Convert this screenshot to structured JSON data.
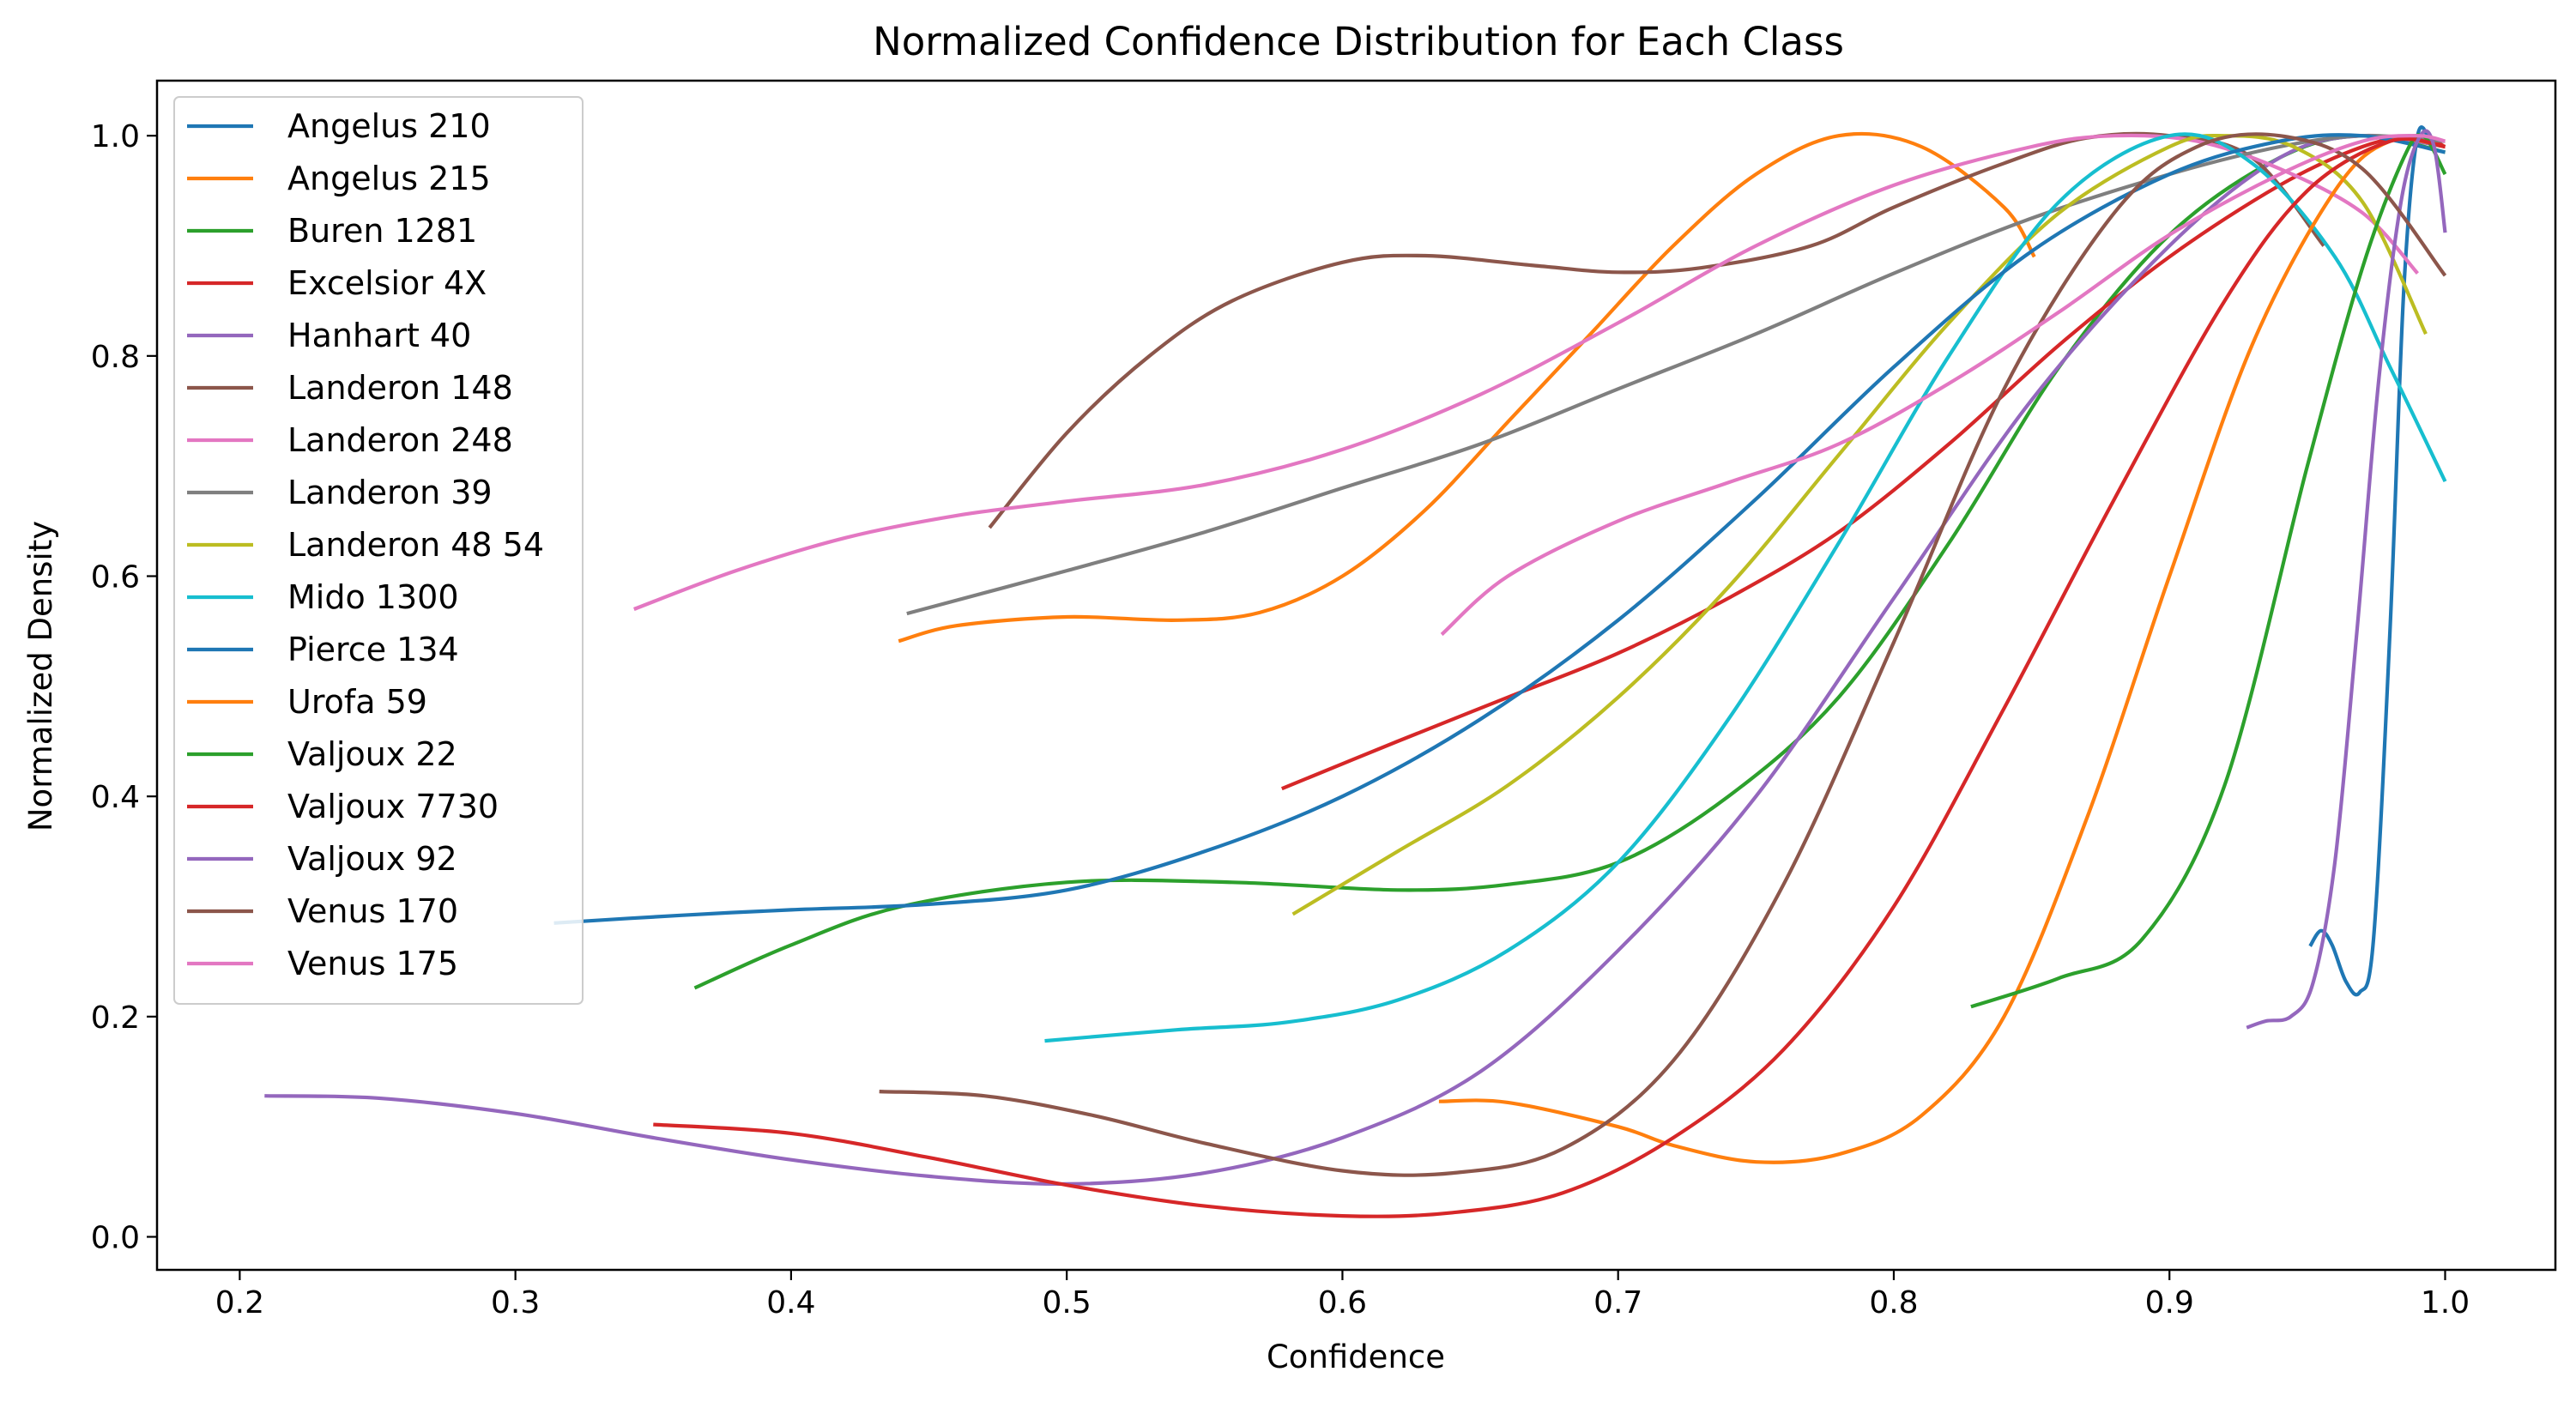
{
  "chart_data": {
    "type": "line",
    "title": "Normalized Confidence Distribution for Each Class",
    "xlabel": "Confidence",
    "ylabel": "Normalized Density",
    "xlim": [
      0.17,
      1.04
    ],
    "ylim": [
      -0.03,
      1.05
    ],
    "xticks": [
      "0.2",
      "0.3",
      "0.4",
      "0.5",
      "0.6",
      "0.7",
      "0.8",
      "0.9",
      "1.0"
    ],
    "yticks": [
      "0.0",
      "0.2",
      "0.4",
      "0.6",
      "0.8",
      "1.0"
    ],
    "grid": false,
    "legend_position": "upper-left",
    "series": [
      {
        "name": "Angelus 210",
        "color": "#1f77b4",
        "points": [
          [
            0.951,
            0.264
          ],
          [
            0.955,
            0.278
          ],
          [
            0.959,
            0.265
          ],
          [
            0.964,
            0.232
          ],
          [
            0.969,
            0.222
          ],
          [
            0.974,
            0.27
          ],
          [
            0.98,
            0.55
          ],
          [
            0.985,
            0.86
          ],
          [
            0.99,
            1.0
          ],
          [
            0.995,
            0.99
          ]
        ]
      },
      {
        "name": "Angelus 215",
        "color": "#ff7f0e",
        "points": [
          [
            0.439,
            0.541
          ],
          [
            0.46,
            0.555
          ],
          [
            0.5,
            0.563
          ],
          [
            0.54,
            0.56
          ],
          [
            0.57,
            0.567
          ],
          [
            0.6,
            0.6
          ],
          [
            0.63,
            0.66
          ],
          [
            0.66,
            0.74
          ],
          [
            0.69,
            0.82
          ],
          [
            0.72,
            0.9
          ],
          [
            0.75,
            0.965
          ],
          [
            0.78,
            1.0
          ],
          [
            0.81,
            0.99
          ],
          [
            0.84,
            0.935
          ],
          [
            0.851,
            0.89
          ]
        ]
      },
      {
        "name": "Buren 1281",
        "color": "#2ca02c",
        "points": [
          [
            0.365,
            0.226
          ],
          [
            0.4,
            0.265
          ],
          [
            0.44,
            0.3
          ],
          [
            0.5,
            0.322
          ],
          [
            0.56,
            0.322
          ],
          [
            0.62,
            0.315
          ],
          [
            0.66,
            0.32
          ],
          [
            0.7,
            0.34
          ],
          [
            0.74,
            0.4
          ],
          [
            0.78,
            0.49
          ],
          [
            0.82,
            0.63
          ],
          [
            0.86,
            0.79
          ],
          [
            0.9,
            0.91
          ],
          [
            0.94,
            0.98
          ],
          [
            0.97,
            1.0
          ],
          [
            1.0,
            0.985
          ]
        ]
      },
      {
        "name": "Excelsior 4X",
        "color": "#d62728",
        "points": [
          [
            0.578,
            0.407
          ],
          [
            0.62,
            0.45
          ],
          [
            0.66,
            0.49
          ],
          [
            0.7,
            0.53
          ],
          [
            0.74,
            0.58
          ],
          [
            0.78,
            0.64
          ],
          [
            0.82,
            0.72
          ],
          [
            0.86,
            0.81
          ],
          [
            0.9,
            0.89
          ],
          [
            0.94,
            0.955
          ],
          [
            0.97,
            0.99
          ],
          [
            0.99,
            1.0
          ],
          [
            1.0,
            0.99
          ]
        ]
      },
      {
        "name": "Hanhart 40",
        "color": "#9467bd",
        "points": [
          [
            0.209,
            0.128
          ],
          [
            0.25,
            0.126
          ],
          [
            0.3,
            0.112
          ],
          [
            0.35,
            0.09
          ],
          [
            0.4,
            0.07
          ],
          [
            0.45,
            0.055
          ],
          [
            0.5,
            0.048
          ],
          [
            0.55,
            0.058
          ],
          [
            0.6,
            0.09
          ],
          [
            0.65,
            0.15
          ],
          [
            0.7,
            0.26
          ],
          [
            0.75,
            0.4
          ],
          [
            0.8,
            0.58
          ],
          [
            0.85,
            0.76
          ],
          [
            0.9,
            0.9
          ],
          [
            0.94,
            0.98
          ],
          [
            0.97,
            1.0
          ],
          [
            1.0,
            0.99
          ]
        ]
      },
      {
        "name": "Landeron 148",
        "color": "#8c564b",
        "points": [
          [
            0.472,
            0.644
          ],
          [
            0.5,
            0.73
          ],
          [
            0.53,
            0.8
          ],
          [
            0.56,
            0.85
          ],
          [
            0.6,
            0.885
          ],
          [
            0.63,
            0.891
          ],
          [
            0.67,
            0.882
          ],
          [
            0.7,
            0.876
          ],
          [
            0.73,
            0.88
          ],
          [
            0.77,
            0.9
          ],
          [
            0.8,
            0.935
          ],
          [
            0.84,
            0.975
          ],
          [
            0.87,
            0.998
          ],
          [
            0.9,
            1.0
          ],
          [
            0.93,
            0.98
          ],
          [
            0.956,
            0.9
          ]
        ]
      },
      {
        "name": "Landeron 248",
        "color": "#e377c2",
        "points": [
          [
            0.343,
            0.57
          ],
          [
            0.38,
            0.605
          ],
          [
            0.42,
            0.635
          ],
          [
            0.46,
            0.655
          ],
          [
            0.5,
            0.668
          ],
          [
            0.55,
            0.683
          ],
          [
            0.6,
            0.715
          ],
          [
            0.65,
            0.765
          ],
          [
            0.7,
            0.83
          ],
          [
            0.75,
            0.9
          ],
          [
            0.8,
            0.955
          ],
          [
            0.85,
            0.99
          ],
          [
            0.88,
            1.0
          ],
          [
            0.91,
            0.995
          ],
          [
            0.94,
            0.97
          ],
          [
            0.97,
            0.93
          ],
          [
            0.99,
            0.875
          ]
        ]
      },
      {
        "name": "Landeron 39",
        "color": "#7f7f7f",
        "points": [
          [
            0.442,
            0.566
          ],
          [
            0.5,
            0.605
          ],
          [
            0.55,
            0.64
          ],
          [
            0.6,
            0.68
          ],
          [
            0.65,
            0.72
          ],
          [
            0.7,
            0.77
          ],
          [
            0.75,
            0.82
          ],
          [
            0.8,
            0.875
          ],
          [
            0.85,
            0.925
          ],
          [
            0.9,
            0.965
          ],
          [
            0.94,
            0.99
          ],
          [
            0.97,
            1.0
          ],
          [
            1.0,
            0.995
          ]
        ]
      },
      {
        "name": "Landeron 48 54",
        "color": "#bcbd22",
        "points": [
          [
            0.582,
            0.293
          ],
          [
            0.62,
            0.35
          ],
          [
            0.66,
            0.41
          ],
          [
            0.7,
            0.49
          ],
          [
            0.74,
            0.59
          ],
          [
            0.78,
            0.71
          ],
          [
            0.82,
            0.83
          ],
          [
            0.86,
            0.93
          ],
          [
            0.9,
            0.99
          ],
          [
            0.92,
            1.0
          ],
          [
            0.945,
            0.99
          ],
          [
            0.97,
            0.94
          ],
          [
            0.993,
            0.82
          ]
        ]
      },
      {
        "name": "Mido 1300",
        "color": "#17becf",
        "points": [
          [
            0.492,
            0.178
          ],
          [
            0.54,
            0.188
          ],
          [
            0.58,
            0.195
          ],
          [
            0.62,
            0.215
          ],
          [
            0.66,
            0.26
          ],
          [
            0.7,
            0.34
          ],
          [
            0.74,
            0.47
          ],
          [
            0.78,
            0.63
          ],
          [
            0.82,
            0.8
          ],
          [
            0.86,
            0.94
          ],
          [
            0.9,
            1.0
          ],
          [
            0.93,
            0.975
          ],
          [
            0.96,
            0.89
          ],
          [
            0.98,
            0.79
          ],
          [
            1.0,
            0.686
          ]
        ]
      },
      {
        "name": "Pierce 134",
        "color": "#1f77b4",
        "points": [
          [
            0.314,
            0.285
          ],
          [
            0.36,
            0.292
          ],
          [
            0.4,
            0.297
          ],
          [
            0.45,
            0.302
          ],
          [
            0.5,
            0.315
          ],
          [
            0.55,
            0.35
          ],
          [
            0.6,
            0.4
          ],
          [
            0.65,
            0.47
          ],
          [
            0.7,
            0.56
          ],
          [
            0.75,
            0.67
          ],
          [
            0.8,
            0.79
          ],
          [
            0.85,
            0.895
          ],
          [
            0.9,
            0.965
          ],
          [
            0.94,
            0.995
          ],
          [
            0.97,
            1.0
          ],
          [
            1.0,
            0.985
          ]
        ]
      },
      {
        "name": "Urofa 59",
        "color": "#ff7f0e",
        "points": [
          [
            0.635,
            0.123
          ],
          [
            0.66,
            0.122
          ],
          [
            0.7,
            0.1
          ],
          [
            0.72,
            0.083
          ],
          [
            0.75,
            0.068
          ],
          [
            0.78,
            0.075
          ],
          [
            0.81,
            0.11
          ],
          [
            0.84,
            0.2
          ],
          [
            0.87,
            0.38
          ],
          [
            0.9,
            0.6
          ],
          [
            0.93,
            0.81
          ],
          [
            0.96,
            0.95
          ],
          [
            0.98,
            0.995
          ],
          [
            1.0,
            0.99
          ]
        ]
      },
      {
        "name": "Valjoux 22",
        "color": "#2ca02c",
        "points": [
          [
            0.828,
            0.209
          ],
          [
            0.86,
            0.235
          ],
          [
            0.89,
            0.27
          ],
          [
            0.92,
            0.41
          ],
          [
            0.95,
            0.7
          ],
          [
            0.97,
            0.88
          ],
          [
            0.985,
            0.98
          ],
          [
            0.992,
            1.0
          ],
          [
            1.0,
            0.965
          ]
        ]
      },
      {
        "name": "Valjoux 7730",
        "color": "#d62728",
        "points": [
          [
            0.35,
            0.102
          ],
          [
            0.4,
            0.094
          ],
          [
            0.45,
            0.072
          ],
          [
            0.5,
            0.047
          ],
          [
            0.55,
            0.028
          ],
          [
            0.6,
            0.019
          ],
          [
            0.64,
            0.022
          ],
          [
            0.68,
            0.04
          ],
          [
            0.72,
            0.09
          ],
          [
            0.76,
            0.17
          ],
          [
            0.8,
            0.3
          ],
          [
            0.84,
            0.48
          ],
          [
            0.88,
            0.67
          ],
          [
            0.92,
            0.85
          ],
          [
            0.95,
            0.95
          ],
          [
            0.98,
            0.995
          ],
          [
            1.0,
            0.99
          ]
        ]
      },
      {
        "name": "Valjoux 92",
        "color": "#9467bd",
        "points": [
          [
            0.928,
            0.19
          ],
          [
            0.935,
            0.196
          ],
          [
            0.944,
            0.2
          ],
          [
            0.952,
            0.23
          ],
          [
            0.96,
            0.34
          ],
          [
            0.968,
            0.55
          ],
          [
            0.976,
            0.78
          ],
          [
            0.984,
            0.94
          ],
          [
            0.991,
            1.0
          ],
          [
            0.996,
            0.99
          ],
          [
            1.0,
            0.912
          ]
        ]
      },
      {
        "name": "Venus 170",
        "color": "#8c564b",
        "points": [
          [
            0.432,
            0.132
          ],
          [
            0.47,
            0.128
          ],
          [
            0.51,
            0.11
          ],
          [
            0.55,
            0.085
          ],
          [
            0.6,
            0.06
          ],
          [
            0.64,
            0.058
          ],
          [
            0.68,
            0.08
          ],
          [
            0.72,
            0.16
          ],
          [
            0.76,
            0.32
          ],
          [
            0.8,
            0.54
          ],
          [
            0.84,
            0.77
          ],
          [
            0.88,
            0.93
          ],
          [
            0.91,
            0.99
          ],
          [
            0.94,
            1.0
          ],
          [
            0.97,
            0.97
          ],
          [
            1.0,
            0.873
          ]
        ]
      },
      {
        "name": "Venus 175",
        "color": "#e377c2",
        "points": [
          [
            0.636,
            0.547
          ],
          [
            0.66,
            0.6
          ],
          [
            0.7,
            0.65
          ],
          [
            0.74,
            0.685
          ],
          [
            0.78,
            0.72
          ],
          [
            0.82,
            0.775
          ],
          [
            0.86,
            0.84
          ],
          [
            0.9,
            0.91
          ],
          [
            0.94,
            0.965
          ],
          [
            0.97,
            0.995
          ],
          [
            0.99,
            1.0
          ],
          [
            1.0,
            0.995
          ]
        ]
      }
    ]
  }
}
